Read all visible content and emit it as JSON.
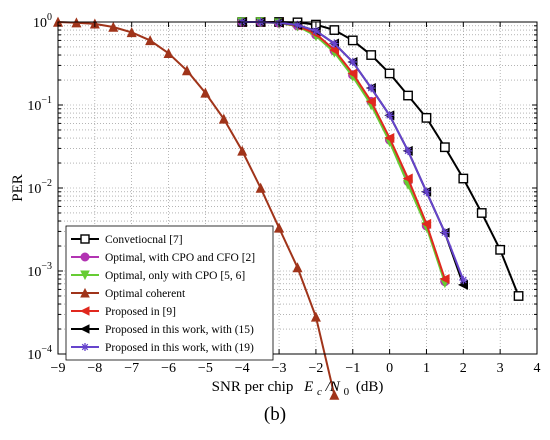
{
  "caption": "(b)",
  "chart_data": {
    "type": "line",
    "xlabel": "SNR per chip",
    "xlabel_math": "E",
    "xlabel_sub1": "c",
    "xlabel_mid": "/N",
    "xlabel_sub2": "0",
    "xlabel_unit": "(dB)",
    "ylabel": "PER",
    "xlim": [
      -9,
      4
    ],
    "ylim": [
      0.0001,
      1
    ],
    "yscale": "log",
    "grid": true,
    "legend_position": "lower-left",
    "x_ticks": [
      "-9",
      "-8",
      "-7",
      "-6",
      "-5",
      "-4",
      "-3",
      "-2",
      "-1",
      "0",
      "1",
      "2",
      "3",
      "4"
    ],
    "y_ticks": [
      {
        "base": "10",
        "exp": "0"
      },
      {
        "base": "10",
        "exp": "-1"
      },
      {
        "base": "10",
        "exp": "-2"
      },
      {
        "base": "10",
        "exp": "-3"
      },
      {
        "base": "10",
        "exp": "-4"
      }
    ],
    "series": [
      {
        "name": "Convetiocnal [7]",
        "color": "#000000",
        "marker": "square",
        "x": [
          -4,
          -3.5,
          -3,
          -2.5,
          -2,
          -1.5,
          -1,
          -0.5,
          0,
          0.5,
          1,
          1.5,
          2,
          2.5,
          3,
          3.5
        ],
        "y": [
          1,
          1,
          1,
          0.99,
          0.93,
          0.8,
          0.6,
          0.4,
          0.24,
          0.13,
          0.07,
          0.031,
          0.013,
          0.005,
          0.0018,
          0.0005
        ]
      },
      {
        "name": "Optimal, with CPO and CFO [2]",
        "color": "#b233b2",
        "marker": "circle",
        "x": [
          -4,
          -3.5,
          -3,
          -2.5,
          -2,
          -1.5,
          -1,
          -0.5,
          0,
          0.5,
          1,
          1.5
        ],
        "y": [
          1,
          1,
          0.97,
          0.9,
          0.7,
          0.45,
          0.23,
          0.11,
          0.038,
          0.012,
          0.0035,
          0.00075
        ]
      },
      {
        "name": "Optimal, only with CPO [5, 6]",
        "color": "#66cc33",
        "marker": "triangle-down",
        "x": [
          -4,
          -3.5,
          -3,
          -2.5,
          -2,
          -1.5,
          -1,
          -0.5,
          0,
          0.5,
          1,
          1.5
        ],
        "y": [
          1,
          1,
          0.97,
          0.89,
          0.68,
          0.43,
          0.22,
          0.1,
          0.036,
          0.011,
          0.0034,
          0.00072
        ]
      },
      {
        "name": "Optimal coherent",
        "color": "#a0341a",
        "marker": "triangle-up",
        "x": [
          -9,
          -8.5,
          -8,
          -7.5,
          -7,
          -6.5,
          -6,
          -5.5,
          -5,
          -4.5,
          -4,
          -3.5,
          -3,
          -2.5,
          -2,
          -1.5
        ],
        "y": [
          1,
          0.98,
          0.95,
          0.87,
          0.75,
          0.6,
          0.42,
          0.26,
          0.14,
          0.068,
          0.028,
          0.01,
          0.0033,
          0.0011,
          0.00028,
          3.2e-05
        ]
      },
      {
        "name": "Proposed in [9]",
        "color": "#e0281e",
        "marker": "triangle-left",
        "x": [
          -4,
          -3.5,
          -3,
          -2.5,
          -2,
          -1.5,
          -1,
          -0.5,
          0,
          0.5,
          1,
          1.5
        ],
        "y": [
          1,
          1,
          0.98,
          0.9,
          0.72,
          0.46,
          0.24,
          0.11,
          0.04,
          0.013,
          0.0037,
          0.0008
        ]
      },
      {
        "name": "Proposed in this work, with (15)",
        "color": "#000000",
        "marker": "triangle-left",
        "x": [
          -4,
          -3.5,
          -3,
          -2.5,
          -2,
          -1.5,
          -1,
          -0.5,
          0,
          0.5,
          1,
          1.5,
          2
        ],
        "y": [
          1,
          1,
          0.98,
          0.92,
          0.78,
          0.55,
          0.33,
          0.16,
          0.075,
          0.028,
          0.009,
          0.0029,
          0.00068
        ]
      },
      {
        "name": "Proposed in this work, with (19)",
        "color": "#6644cc",
        "marker": "star",
        "x": [
          -4,
          -3.5,
          -3,
          -2.5,
          -2,
          -1.5,
          -1,
          -0.5,
          0,
          0.5,
          1,
          1.5,
          2
        ],
        "y": [
          1,
          1,
          0.98,
          0.92,
          0.78,
          0.55,
          0.33,
          0.16,
          0.075,
          0.028,
          0.009,
          0.0029,
          0.00078
        ]
      }
    ]
  }
}
